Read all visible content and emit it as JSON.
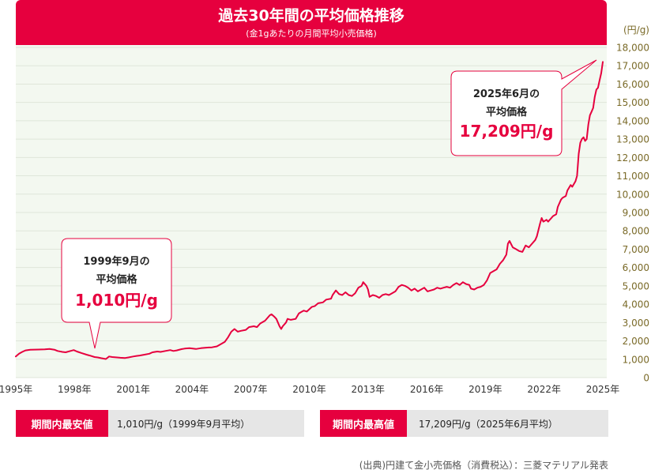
{
  "chart_data": {
    "type": "line",
    "title": "過去30年間の平均価格推移",
    "subtitle": "(金1gあたりの月間平均小売価格)",
    "ylabel": "(円/g)",
    "ylim": [
      0,
      18000
    ],
    "y_tick_labels": [
      "0",
      "1,000",
      "2,000",
      "3,000",
      "4,000",
      "5,000",
      "6,000",
      "7,000",
      "8,000",
      "9,000",
      "10,000",
      "11,000",
      "12,000",
      "13,000",
      "14,000",
      "15,000",
      "16,000",
      "17,000",
      "18,000"
    ],
    "x_tick_labels": [
      "1995年",
      "1998年",
      "2001年",
      "2004年",
      "2007年",
      "2010年",
      "2013年",
      "2016年",
      "2019年",
      "2022年",
      "2025年"
    ],
    "x_range": [
      "1995-01",
      "2025-06"
    ],
    "grid": true,
    "legend": "none",
    "series": [
      {
        "points": [
          [
            "1995-01",
            1150
          ],
          [
            "1995-03",
            1300
          ],
          [
            "1995-05",
            1400
          ],
          [
            "1995-07",
            1480
          ],
          [
            "1995-10",
            1520
          ],
          [
            "1996-03",
            1530
          ],
          [
            "1996-07",
            1540
          ],
          [
            "1996-10",
            1560
          ],
          [
            "1997-01",
            1520
          ],
          [
            "1997-03",
            1450
          ],
          [
            "1997-06",
            1400
          ],
          [
            "1997-08",
            1380
          ],
          [
            "1997-11",
            1450
          ],
          [
            "1998-01",
            1500
          ],
          [
            "1998-03",
            1420
          ],
          [
            "1998-06",
            1330
          ],
          [
            "1998-09",
            1250
          ],
          [
            "1998-11",
            1200
          ],
          [
            "1999-02",
            1120
          ],
          [
            "1999-04",
            1100
          ],
          [
            "1999-06",
            1060
          ],
          [
            "1999-09",
            1010
          ],
          [
            "1999-11",
            1150
          ],
          [
            "2000-01",
            1120
          ],
          [
            "2000-04",
            1100
          ],
          [
            "2000-06",
            1080
          ],
          [
            "2000-09",
            1070
          ],
          [
            "2000-11",
            1100
          ],
          [
            "2001-02",
            1150
          ],
          [
            "2001-04",
            1180
          ],
          [
            "2001-06",
            1200
          ],
          [
            "2001-09",
            1250
          ],
          [
            "2001-12",
            1300
          ],
          [
            "2002-02",
            1380
          ],
          [
            "2002-05",
            1420
          ],
          [
            "2002-07",
            1400
          ],
          [
            "2002-10",
            1450
          ],
          [
            "2003-01",
            1500
          ],
          [
            "2003-03",
            1450
          ],
          [
            "2003-05",
            1480
          ],
          [
            "2003-08",
            1550
          ],
          [
            "2003-10",
            1580
          ],
          [
            "2004-01",
            1600
          ],
          [
            "2004-03",
            1580
          ],
          [
            "2004-05",
            1560
          ],
          [
            "2004-08",
            1600
          ],
          [
            "2004-10",
            1620
          ],
          [
            "2005-01",
            1640
          ],
          [
            "2005-03",
            1650
          ],
          [
            "2005-06",
            1700
          ],
          [
            "2005-08",
            1800
          ],
          [
            "2005-11",
            1950
          ],
          [
            "2006-01",
            2200
          ],
          [
            "2006-03",
            2500
          ],
          [
            "2006-05",
            2650
          ],
          [
            "2006-07",
            2500
          ],
          [
            "2006-09",
            2550
          ],
          [
            "2006-12",
            2600
          ],
          [
            "2007-02",
            2750
          ],
          [
            "2007-05",
            2800
          ],
          [
            "2007-07",
            2750
          ],
          [
            "2007-09",
            2950
          ],
          [
            "2007-12",
            3100
          ],
          [
            "2008-03",
            3400
          ],
          [
            "2008-04",
            3450
          ],
          [
            "2008-06",
            3300
          ],
          [
            "2008-07",
            3200
          ],
          [
            "2008-09",
            2800
          ],
          [
            "2008-10",
            2650
          ],
          [
            "2008-11",
            2800
          ],
          [
            "2009-01",
            3000
          ],
          [
            "2009-02",
            3200
          ],
          [
            "2009-04",
            3150
          ],
          [
            "2009-07",
            3200
          ],
          [
            "2009-09",
            3500
          ],
          [
            "2009-12",
            3650
          ],
          [
            "2010-02",
            3600
          ],
          [
            "2010-05",
            3850
          ],
          [
            "2010-07",
            3900
          ],
          [
            "2010-09",
            4050
          ],
          [
            "2010-12",
            4100
          ],
          [
            "2011-02",
            4250
          ],
          [
            "2011-05",
            4300
          ],
          [
            "2011-06",
            4500
          ],
          [
            "2011-08",
            4750
          ],
          [
            "2011-10",
            4550
          ],
          [
            "2011-12",
            4500
          ],
          [
            "2012-02",
            4650
          ],
          [
            "2012-04",
            4500
          ],
          [
            "2012-06",
            4450
          ],
          [
            "2012-08",
            4600
          ],
          [
            "2012-10",
            4900
          ],
          [
            "2012-12",
            5000
          ],
          [
            "2013-01",
            5200
          ],
          [
            "2013-03",
            5000
          ],
          [
            "2013-04",
            4800
          ],
          [
            "2013-05",
            4400
          ],
          [
            "2013-07",
            4500
          ],
          [
            "2013-09",
            4450
          ],
          [
            "2013-11",
            4350
          ],
          [
            "2014-01",
            4500
          ],
          [
            "2014-03",
            4550
          ],
          [
            "2014-05",
            4500
          ],
          [
            "2014-07",
            4600
          ],
          [
            "2014-09",
            4700
          ],
          [
            "2014-11",
            4950
          ],
          [
            "2015-01",
            5050
          ],
          [
            "2015-03",
            5000
          ],
          [
            "2015-05",
            4900
          ],
          [
            "2015-07",
            4750
          ],
          [
            "2015-09",
            4850
          ],
          [
            "2015-11",
            4700
          ],
          [
            "2016-01",
            4800
          ],
          [
            "2016-03",
            4900
          ],
          [
            "2016-05",
            4700
          ],
          [
            "2016-07",
            4750
          ],
          [
            "2016-09",
            4800
          ],
          [
            "2016-11",
            4900
          ],
          [
            "2017-01",
            4850
          ],
          [
            "2017-03",
            4900
          ],
          [
            "2017-05",
            4950
          ],
          [
            "2017-07",
            4900
          ],
          [
            "2017-09",
            5050
          ],
          [
            "2017-11",
            5150
          ],
          [
            "2018-01",
            5050
          ],
          [
            "2018-03",
            5200
          ],
          [
            "2018-05",
            5100
          ],
          [
            "2018-07",
            5050
          ],
          [
            "2018-08",
            4850
          ],
          [
            "2018-10",
            4800
          ],
          [
            "2018-12",
            4900
          ],
          [
            "2019-02",
            4950
          ],
          [
            "2019-04",
            5050
          ],
          [
            "2019-06",
            5300
          ],
          [
            "2019-08",
            5700
          ],
          [
            "2019-10",
            5800
          ],
          [
            "2019-12",
            5900
          ],
          [
            "2020-02",
            6200
          ],
          [
            "2020-04",
            6400
          ],
          [
            "2020-06",
            6700
          ],
          [
            "2020-07",
            7300
          ],
          [
            "2020-08",
            7450
          ],
          [
            "2020-10",
            7100
          ],
          [
            "2020-12",
            7000
          ],
          [
            "2021-02",
            6900
          ],
          [
            "2021-04",
            6850
          ],
          [
            "2021-06",
            7200
          ],
          [
            "2021-08",
            7100
          ],
          [
            "2021-10",
            7300
          ],
          [
            "2021-12",
            7500
          ],
          [
            "2022-01",
            7700
          ],
          [
            "2022-03",
            8400
          ],
          [
            "2022-04",
            8700
          ],
          [
            "2022-05",
            8500
          ],
          [
            "2022-07",
            8600
          ],
          [
            "2022-08",
            8500
          ],
          [
            "2022-10",
            8700
          ],
          [
            "2022-11",
            8800
          ],
          [
            "2023-01",
            8900
          ],
          [
            "2023-02",
            9300
          ],
          [
            "2023-04",
            9700
          ],
          [
            "2023-05",
            9800
          ],
          [
            "2023-07",
            9900
          ],
          [
            "2023-08",
            10200
          ],
          [
            "2023-10",
            10500
          ],
          [
            "2023-11",
            10400
          ],
          [
            "2024-01",
            10700
          ],
          [
            "2024-02",
            11000
          ],
          [
            "2024-03",
            12200
          ],
          [
            "2024-04",
            12800
          ],
          [
            "2024-05",
            13000
          ],
          [
            "2024-06",
            13100
          ],
          [
            "2024-07",
            12900
          ],
          [
            "2024-08",
            13000
          ],
          [
            "2024-09",
            13800
          ],
          [
            "2024-10",
            14300
          ],
          [
            "2024-11",
            14500
          ],
          [
            "2024-12",
            14700
          ],
          [
            "2025-01",
            15300
          ],
          [
            "2025-02",
            15700
          ],
          [
            "2025-03",
            15800
          ],
          [
            "2025-04",
            16200
          ],
          [
            "2025-05",
            16600
          ],
          [
            "2025-06",
            17209
          ]
        ]
      }
    ],
    "annotations": [
      {
        "x": "1999-09",
        "y": 1010,
        "lines": [
          "1999年9月の",
          "平均価格"
        ],
        "value": "1,010円/g"
      },
      {
        "x": "2025-06",
        "y": 17209,
        "lines": [
          "2025年6月の",
          "平均価格"
        ],
        "value": "17,209円/g"
      }
    ]
  },
  "summary": {
    "min": {
      "label": "期間内最安値",
      "value": "1,010円/g（1999年9月平均）"
    },
    "max": {
      "label": "期間内最高値",
      "value": "17,209円/g（2025年6月平均）"
    }
  },
  "source": "(出典)円建て金小売価格（消費税込）：三菱マテリアル発表",
  "colors": {
    "accent": "#e6003e",
    "plot_background": "#f3f8f0",
    "axis_text": "#7a6a28",
    "summary_background": "#e6e6e6"
  }
}
